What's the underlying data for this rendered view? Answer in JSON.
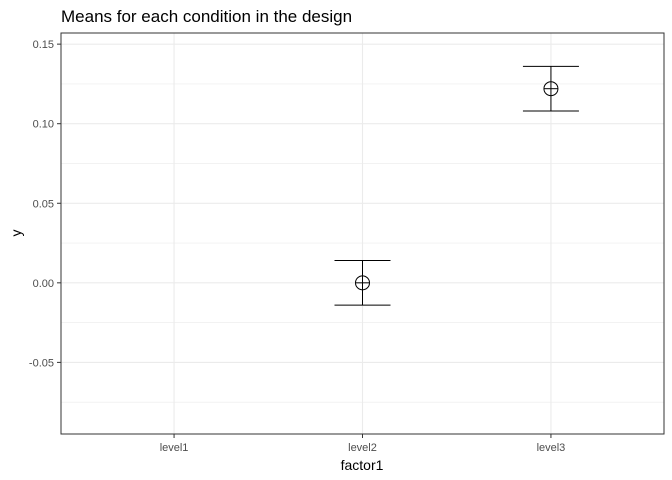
{
  "chart_data": {
    "type": "scatter",
    "title": "Means for each condition in the design",
    "xlabel": "factor1",
    "ylabel": "y",
    "categories": [
      "level1",
      "level2",
      "level3"
    ],
    "points": [
      {
        "category": "level2",
        "mean": 0.0,
        "lower": -0.014,
        "upper": 0.014
      },
      {
        "category": "level3",
        "mean": 0.122,
        "lower": 0.108,
        "upper": 0.136
      }
    ],
    "ylim": [
      -0.095,
      0.157
    ],
    "yticks": [
      -0.05,
      0.0,
      0.05,
      0.1,
      0.15
    ],
    "ytick_labels": [
      "-0.05",
      "0.00",
      "0.05",
      "0.10",
      "0.15"
    ],
    "grid": true,
    "colors": {
      "panel_border": "#333333",
      "grid": "#ebebeb",
      "marks": "#000000"
    }
  }
}
